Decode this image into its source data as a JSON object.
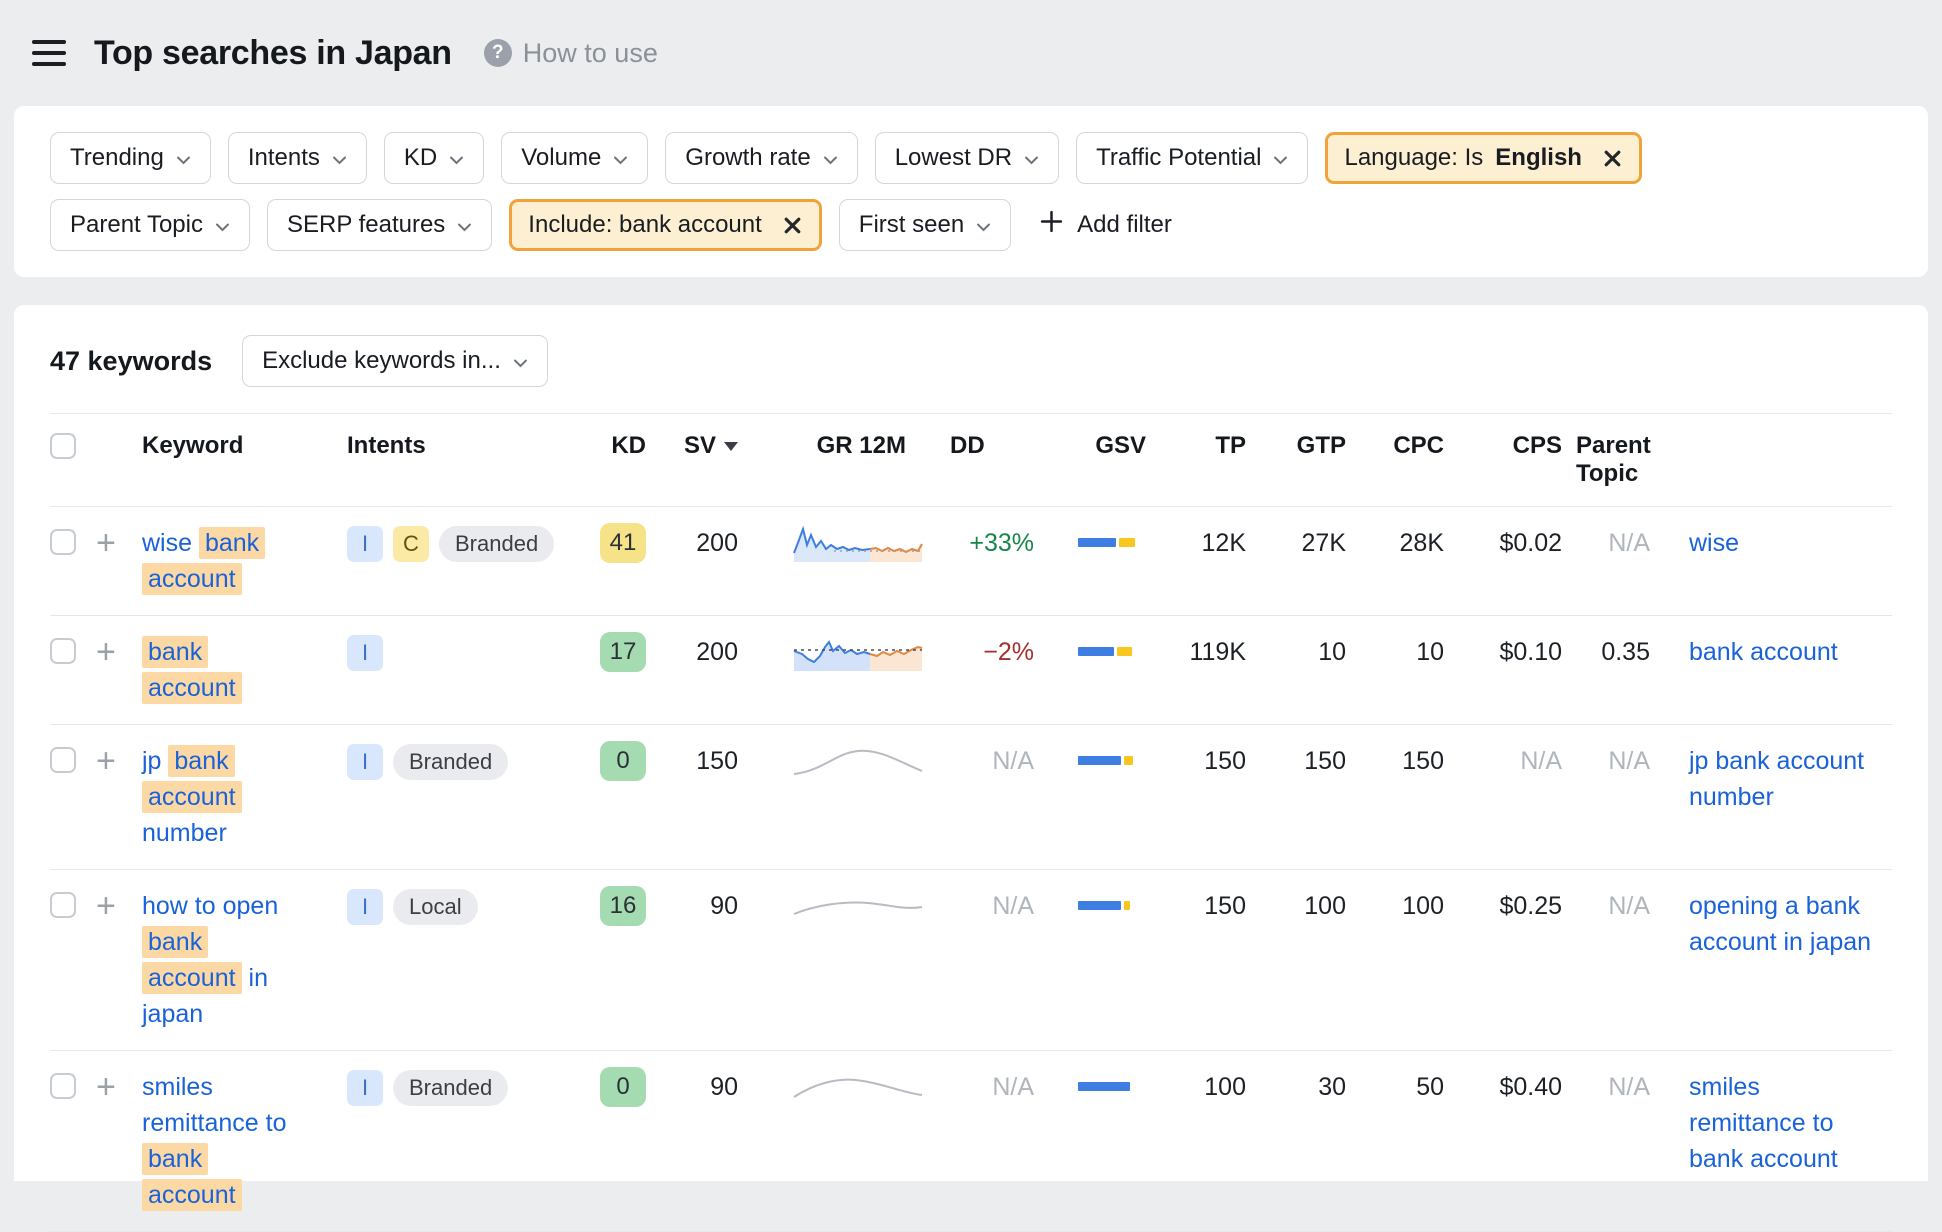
{
  "header": {
    "menu_icon": "hamburger-menu-icon",
    "title": "Top searches in Japan",
    "help_icon": "question-circle-icon",
    "help_label": "How to use"
  },
  "filters": {
    "row1": [
      {
        "label": "Trending",
        "type": "dropdown"
      },
      {
        "label": "Intents",
        "type": "dropdown"
      },
      {
        "label": "KD",
        "type": "dropdown"
      },
      {
        "label": "Volume",
        "type": "dropdown"
      },
      {
        "label": "Growth rate",
        "type": "dropdown"
      },
      {
        "label": "Lowest DR",
        "type": "dropdown"
      },
      {
        "label": "Traffic Potential",
        "type": "dropdown"
      },
      {
        "label": "Language: Is",
        "value": "English",
        "type": "active"
      }
    ],
    "row2": [
      {
        "label": "Parent Topic",
        "type": "dropdown"
      },
      {
        "label": "SERP features",
        "type": "dropdown"
      },
      {
        "label": "Include: bank account",
        "type": "active"
      },
      {
        "label": "First seen",
        "type": "dropdown"
      },
      {
        "label": "Add filter",
        "type": "add"
      }
    ]
  },
  "toolbar": {
    "count": "47 keywords",
    "exclude_label": "Exclude keywords in..."
  },
  "table": {
    "columns": [
      "Keyword",
      "Intents",
      "KD",
      "SV",
      "GR 12M",
      "DD",
      "GSV",
      "TP",
      "GTP",
      "CPC",
      "CPS",
      "Parent Topic"
    ],
    "sorted_by": "SV",
    "sort_icon": "caret-down-icon",
    "rows": [
      {
        "keyword": [
          {
            "t": "wise ",
            "h": false
          },
          {
            "t": "bank account",
            "h": true
          }
        ],
        "intents": [
          {
            "text": "I",
            "style": "blue"
          },
          {
            "text": "C",
            "style": "yellow"
          },
          {
            "text": "Branded",
            "style": "gray"
          }
        ],
        "kd": "41",
        "kd_style": "yellow",
        "sv": "200",
        "trend_icon": "sparkline-volatile-blue-orange",
        "gr": "+33%",
        "gr_style": "positive",
        "dd": {
          "blue": 52,
          "yellow": 22
        },
        "gsv": "12K",
        "tp": "27K",
        "gtp": "28K",
        "cpc": "$0.02",
        "cps": "N/A",
        "parent_topic": "wise"
      },
      {
        "keyword": [
          {
            "t": "bank account",
            "h": true
          }
        ],
        "intents": [
          {
            "text": "I",
            "style": "blue"
          }
        ],
        "kd": "17",
        "kd_style": "green",
        "sv": "200",
        "trend_icon": "sparkline-choppy-blue-orange",
        "gr": "−2%",
        "gr_style": "negative",
        "dd": {
          "blue": 48,
          "yellow": 20
        },
        "gsv": "119K",
        "tp": "10",
        "gtp": "10",
        "cpc": "$0.10",
        "cps": "0.35",
        "parent_topic": "bank account"
      },
      {
        "keyword": [
          {
            "t": "jp ",
            "h": false
          },
          {
            "t": "bank account",
            "h": true
          },
          {
            "t": " number",
            "h": false
          }
        ],
        "intents": [
          {
            "text": "I",
            "style": "blue"
          },
          {
            "text": "Branded",
            "style": "gray"
          }
        ],
        "kd": "0",
        "kd_style": "green",
        "sv": "150",
        "trend_icon": "sparkline-gray-arc",
        "gr": "N/A",
        "gr_style": "na",
        "dd": {
          "blue": 58,
          "yellow": 12
        },
        "gsv": "150",
        "tp": "150",
        "gtp": "150",
        "cpc": "N/A",
        "cps": "N/A",
        "parent_topic": "jp bank account number"
      },
      {
        "keyword": [
          {
            "t": "how to open ",
            "h": false
          },
          {
            "t": "bank account",
            "h": true
          },
          {
            "t": " in japan",
            "h": false
          }
        ],
        "intents": [
          {
            "text": "I",
            "style": "blue"
          },
          {
            "text": "Local",
            "style": "gray"
          }
        ],
        "kd": "16",
        "kd_style": "green",
        "sv": "90",
        "trend_icon": "sparkline-gray-wave",
        "gr": "N/A",
        "gr_style": "na",
        "dd": {
          "blue": 58,
          "yellow": 8
        },
        "gsv": "150",
        "tp": "100",
        "gtp": "100",
        "cpc": "$0.25",
        "cps": "N/A",
        "parent_topic": "opening a bank account in japan"
      },
      {
        "keyword": [
          {
            "t": "smiles remittance to ",
            "h": false
          },
          {
            "t": "bank account",
            "h": true
          }
        ],
        "intents": [
          {
            "text": "I",
            "style": "blue"
          },
          {
            "text": "Branded",
            "style": "gray"
          }
        ],
        "kd": "0",
        "kd_style": "green",
        "sv": "90",
        "trend_icon": "sparkline-gray-hump",
        "gr": "N/A",
        "gr_style": "na",
        "dd": {
          "blue": 70,
          "yellow": 0
        },
        "gsv": "100",
        "tp": "30",
        "gtp": "50",
        "cpc": "$0.40",
        "cps": "N/A",
        "parent_topic": "smiles remittance to bank account"
      }
    ]
  },
  "colors": {
    "accent_orange": "#f1a33b",
    "link_blue": "#1a62d8",
    "keyword_highlight": "#fcd8a4",
    "growth_positive": "#17854a",
    "growth_negative": "#a52f2f",
    "dd_blue": "#3e7de2",
    "dd_yellow": "#f8c61d",
    "kd_yellow": "#f6e288",
    "kd_green": "#a5dbb0"
  }
}
